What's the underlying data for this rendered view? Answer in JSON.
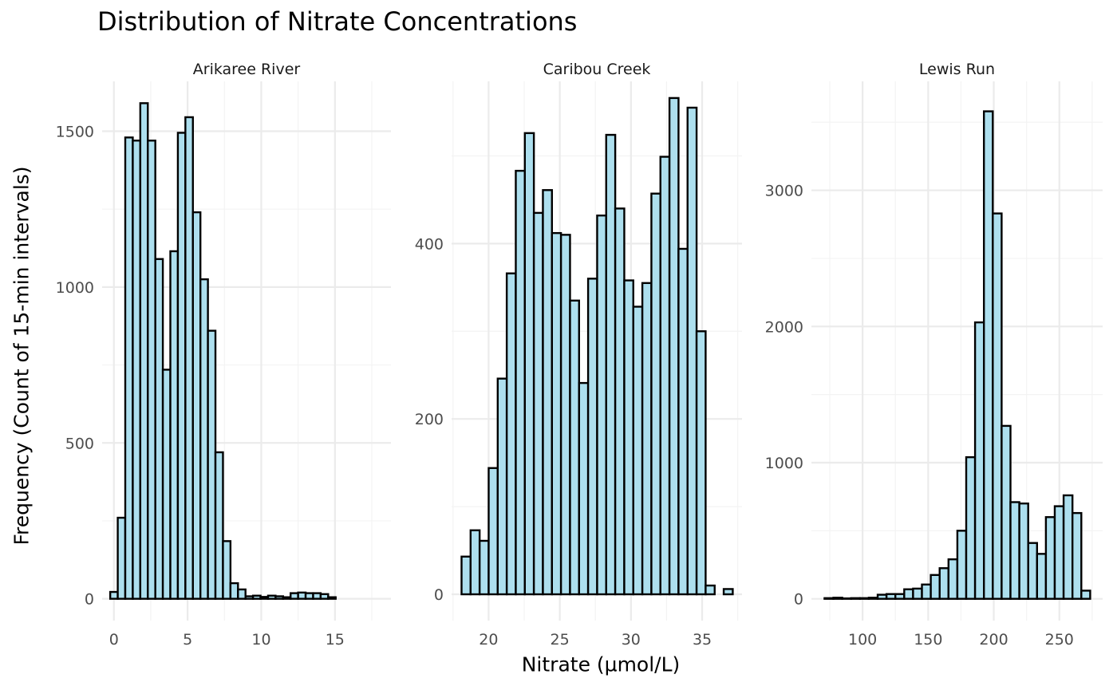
{
  "colors": {
    "bar_fill": "#ADDFEE",
    "bar_stroke": "#000000",
    "grid_major": "#EBEBEB",
    "grid_minor": "#F3F3F3",
    "tick_text": "#4D4D4D",
    "strip_text": "#1A1A1A"
  },
  "chart_data": {
    "type": "bar",
    "title": "Distribution of Nitrate Concentrations",
    "xlabel": "Nitrate (µmol/L)",
    "ylabel": "Frequency (Count of 15-min intervals)",
    "grid": true,
    "legend": "none",
    "facets": [
      {
        "name": "Arikaree River",
        "xlim": [
          -0.8,
          18.8
        ],
        "ylim": [
          -70,
          1660
        ],
        "xticks": [
          0,
          5,
          10,
          15
        ],
        "yticks": [
          0,
          500,
          1000,
          1500
        ],
        "bins": {
          "start": -0.25,
          "width": 0.51,
          "counts": [
            22,
            260,
            1480,
            1470,
            1590,
            1470,
            1090,
            735,
            1115,
            1495,
            1545,
            1240,
            1025,
            860,
            470,
            185,
            50,
            30,
            8,
            10,
            6,
            10,
            8,
            5,
            18,
            20,
            18,
            18,
            15,
            5
          ]
        }
      },
      {
        "name": "Caribou Creek",
        "xlim": [
          17.4,
          37.8
        ],
        "ylim": [
          -30,
          585
        ],
        "xticks": [
          20,
          25,
          30,
          35
        ],
        "yticks": [
          0,
          200,
          400
        ],
        "bins": {
          "start": 18.1,
          "width": 0.635,
          "counts": [
            43,
            73,
            61,
            144,
            246,
            366,
            483,
            526,
            435,
            461,
            412,
            410,
            335,
            241,
            360,
            432,
            524,
            440,
            358,
            328,
            355,
            457,
            499,
            566,
            394,
            555,
            300,
            10,
            0,
            6
          ]
        }
      },
      {
        "name": "Lewis Run",
        "xlim": [
          61,
          283
        ],
        "ylim": [
          -160,
          3800
        ],
        "xticks": [
          100,
          150,
          200,
          250
        ],
        "yticks": [
          0,
          1000,
          2000,
          3000
        ],
        "bins": {
          "start": 71,
          "width": 6.75,
          "counts": [
            5,
            8,
            3,
            5,
            5,
            8,
            30,
            35,
            35,
            70,
            75,
            105,
            175,
            225,
            290,
            500,
            1040,
            2030,
            3580,
            2830,
            1270,
            710,
            700,
            410,
            330,
            600,
            680,
            760,
            630,
            60
          ]
        }
      }
    ]
  }
}
